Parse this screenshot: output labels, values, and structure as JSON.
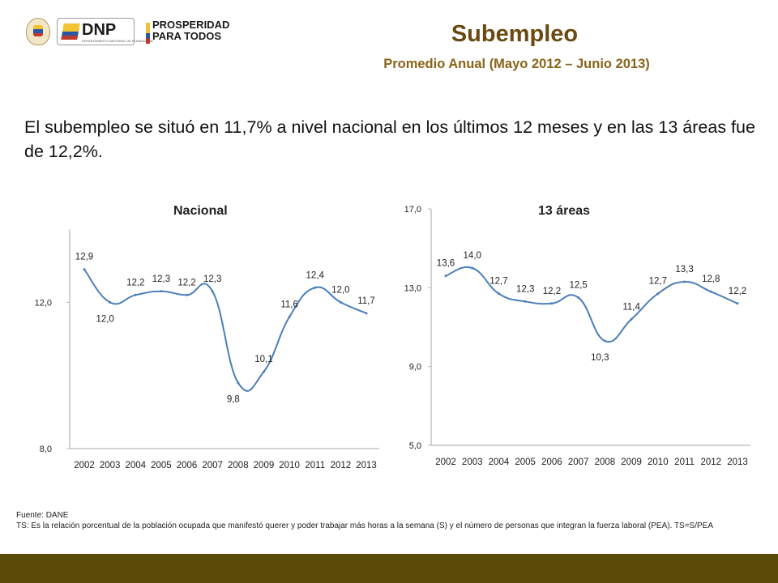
{
  "header": {
    "dnp_logo_text": "DNP",
    "dnp_logo_subtext": "DEPARTAMENTO NACIONAL DE PLANEACIÓN",
    "prosperidad_line1": "PROSPERIDAD",
    "prosperidad_line2": "PARA TODOS",
    "title": "Subempleo",
    "subtitle": "Promedio Anual (Mayo 2012 – Junio 2013)"
  },
  "intro_text": "El subempleo se situó en 11,7% a nivel nacional en los últimos 12 meses y en las 13 áreas fue de 12,2%.",
  "chart_data": [
    {
      "type": "line",
      "title": "Nacional",
      "x": [
        "2002",
        "2003",
        "2004",
        "2005",
        "2006",
        "2007",
        "2008",
        "2009",
        "2010",
        "2011",
        "2012",
        "2013"
      ],
      "series": [
        {
          "values": [
            12.9,
            12.0,
            12.2,
            12.3,
            12.2,
            12.3,
            9.8,
            10.1,
            11.6,
            12.4,
            12.0,
            11.7
          ]
        }
      ],
      "value_labels": [
        "12,9",
        "12,0",
        "12,2",
        "12,3",
        "12,2",
        "12,3",
        "9,8",
        "10,1",
        "11,6",
        "12,4",
        "12,0",
        "11,7"
      ],
      "y_ticks": [
        8.0,
        12.0
      ],
      "y_tick_labels": [
        "8,0",
        "12,0"
      ],
      "ylim": [
        8.0,
        14.0
      ],
      "line_color": "#4a7ebb",
      "grid": false
    },
    {
      "type": "line",
      "title": "13 áreas",
      "x": [
        "2002",
        "2003",
        "2004",
        "2005",
        "2006",
        "2007",
        "2008",
        "2009",
        "2010",
        "2011",
        "2012",
        "2013"
      ],
      "series": [
        {
          "values": [
            13.6,
            14.0,
            12.7,
            12.3,
            12.2,
            12.5,
            10.3,
            11.4,
            12.7,
            13.3,
            12.8,
            12.2
          ]
        }
      ],
      "value_labels": [
        "13,6",
        "14,0",
        "12,7",
        "12,3",
        "12,2",
        "12,5",
        "10,3",
        "11,4",
        "12,7",
        "13,3",
        "12,8",
        "12,2"
      ],
      "y_ticks": [
        5.0,
        9.0,
        13.0,
        17.0
      ],
      "y_tick_labels": [
        "5,0",
        "9,0",
        "13,0",
        "17,0"
      ],
      "ylim": [
        5.0,
        17.0
      ],
      "line_color": "#4a7ebb",
      "grid": false
    }
  ],
  "notes": {
    "source": "Fuente:  DANE",
    "definition": "TS:  Es la relación porcentual de la población ocupada que manifestó querer y poder trabajar más horas a la semana (S) y el número de personas que integran la fuerza laboral (PEA). TS=S/PEA"
  },
  "colors": {
    "title": "#6b4a12",
    "subtitle": "#8a6418",
    "bottom_band": "#5a4a08",
    "series_line": "#4a7ebb"
  }
}
